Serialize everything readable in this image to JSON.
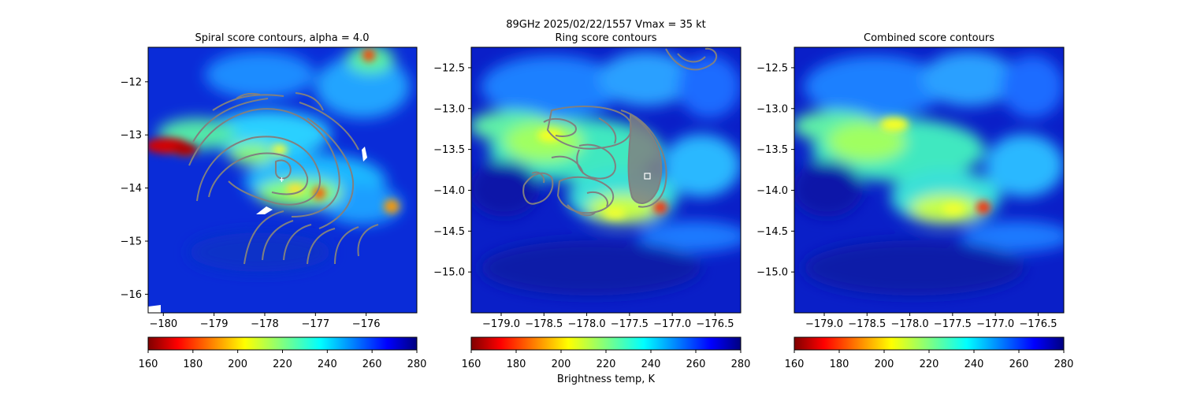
{
  "figure": {
    "suptitle_line1": "89GHz  2025/02/22/1557    Vmax = 35 kt",
    "colorbar_label": "Brightness temp, K"
  },
  "colormap": {
    "name": "jet_r",
    "stops": [
      "#800000",
      "#ff0000",
      "#ff8000",
      "#ffff00",
      "#80ff80",
      "#00ffff",
      "#0080ff",
      "#0000ff",
      "#000080"
    ],
    "vmin": 160,
    "vmax": 280,
    "ticks": [
      160,
      180,
      200,
      220,
      240,
      260,
      280
    ]
  },
  "chart_data": [
    {
      "type": "heatmap",
      "title": "Spiral score contours, alpha =  4.0",
      "xlim": [
        -180.3,
        -175.0
      ],
      "ylim": [
        -16.35,
        -11.35
      ],
      "xticks": [
        -180,
        -179,
        -178,
        -177,
        -176
      ],
      "yticks": [
        -12,
        -13,
        -14,
        -15,
        -16
      ],
      "overlay": "spiral score contours (gray), center marker near (-177.6, -13.85)"
    },
    {
      "type": "heatmap",
      "title": "Ring score contours",
      "xlim": [
        -179.35,
        -176.2
      ],
      "ylim": [
        -15.5,
        -12.25
      ],
      "xticks": [
        -179.0,
        -178.5,
        -178.0,
        -177.5,
        -177.0,
        -176.5
      ],
      "yticks": [
        -12.5,
        -13.0,
        -13.5,
        -14.0,
        -14.5,
        -15.0
      ],
      "overlay": "ring score contours (gray), center marker near (-177.25, -13.8)"
    },
    {
      "type": "heatmap",
      "title": "Combined score contours",
      "xlim": [
        -179.35,
        -176.2
      ],
      "ylim": [
        -15.5,
        -12.25
      ],
      "xticks": [
        -179.0,
        -178.5,
        -178.0,
        -177.5,
        -177.0,
        -176.5
      ],
      "yticks": [
        -12.5,
        -13.0,
        -13.5,
        -14.0,
        -14.5,
        -15.0
      ]
    }
  ]
}
